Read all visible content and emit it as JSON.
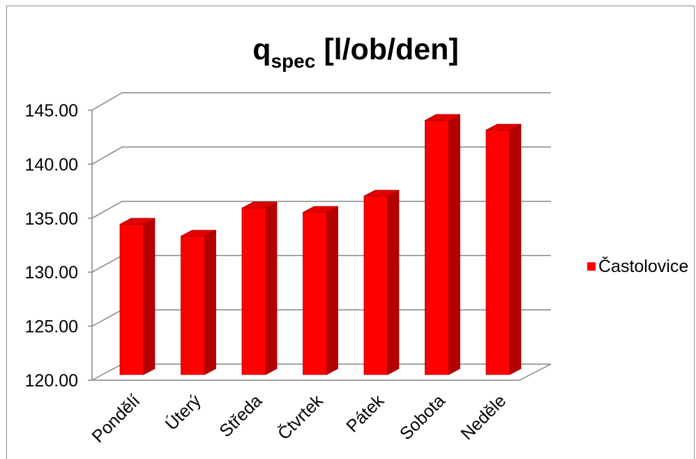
{
  "chart_data": {
    "type": "bar",
    "three_d": true,
    "title": {
      "main": "q",
      "subscript": "spec",
      "suffix": "[l/ob/den]"
    },
    "categories": [
      "Pondělí",
      "Úterý",
      "Středa",
      "Čtvrtek",
      "Pátek",
      "Sobota",
      "Neděle"
    ],
    "series": [
      {
        "name": "Častolovice",
        "values": [
          133.9,
          132.8,
          135.4,
          135.0,
          136.5,
          143.5,
          142.6
        ],
        "color": "#FF0000"
      }
    ],
    "ylim": [
      120,
      145
    ],
    "yticks": [
      "120.00",
      "125.00",
      "130.00",
      "135.00",
      "140.00",
      "145.00"
    ],
    "grid": true,
    "legend": {
      "position": "right"
    }
  },
  "colors": {
    "bar_front": "#FF0000",
    "bar_side": "#B30000",
    "bar_top": "#E20000",
    "bar_outline": "#A80000",
    "grid": "#868686",
    "axis": "#868686",
    "border": "#8C8C8C"
  }
}
